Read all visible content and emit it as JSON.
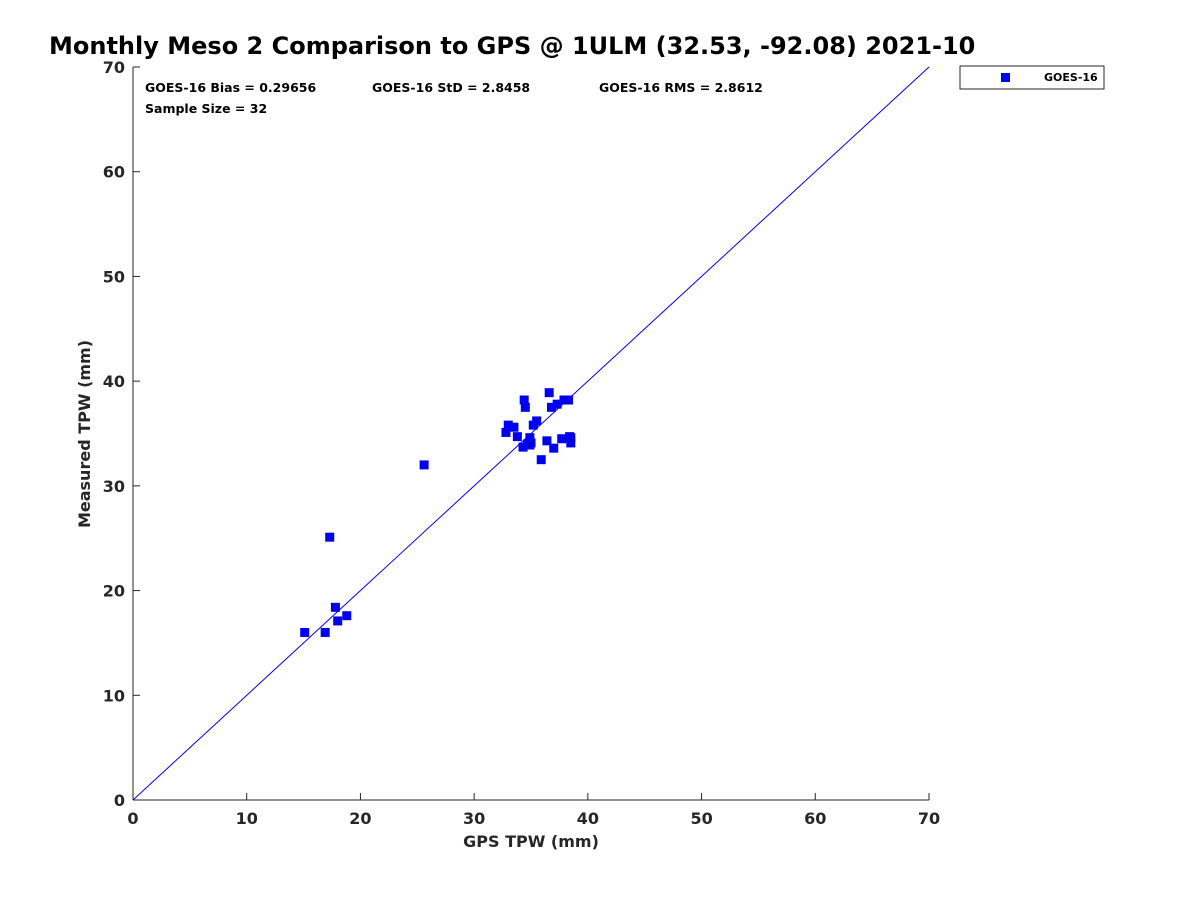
{
  "chart_data": {
    "type": "scatter",
    "title": "Monthly Meso 2 Comparison to GPS @ 1ULM (32.53, -92.08) 2021-10",
    "xlabel": "GPS TPW (mm)",
    "ylabel": "Measured TPW (mm)",
    "xlim": [
      0,
      70
    ],
    "ylim": [
      0,
      70
    ],
    "xticks": [
      "0",
      "10",
      "20",
      "30",
      "40",
      "50",
      "60",
      "70"
    ],
    "yticks": [
      "0",
      "10",
      "20",
      "30",
      "40",
      "50",
      "60",
      "70"
    ],
    "grid": false,
    "legend_position": "top-right-outside",
    "reference_line": {
      "name": "1:1 line",
      "x": [
        0,
        70
      ],
      "y": [
        0,
        70
      ],
      "color": "#0000ff"
    },
    "stats": {
      "bias": "GOES-16 Bias = 0.29656",
      "std": "GOES-16 StD = 2.8458",
      "rms": "GOES-16 RMS = 2.8612",
      "sample_size": "Sample Size = 32"
    },
    "series": [
      {
        "name": "GOES-16",
        "color": "#0000ee",
        "marker": "square",
        "x": [
          15.1,
          16.9,
          18.0,
          17.8,
          18.8,
          17.3,
          25.6,
          32.8,
          33.0,
          33.5,
          33.8,
          34.3,
          34.4,
          34.5,
          34.9,
          34.9,
          35.2,
          35.5,
          35.9,
          36.4,
          36.6,
          36.8,
          37.0,
          37.3,
          37.7,
          37.9,
          38.3,
          38.4,
          38.5,
          38.5,
          34.7,
          35.0
        ],
        "y": [
          16.0,
          16.0,
          17.1,
          18.4,
          17.6,
          25.1,
          32.0,
          35.1,
          35.8,
          35.6,
          34.7,
          33.7,
          38.2,
          37.5,
          33.9,
          34.6,
          35.8,
          36.2,
          32.5,
          34.3,
          38.9,
          37.5,
          33.6,
          37.8,
          34.5,
          38.2,
          38.2,
          34.7,
          34.1,
          34.6,
          34.0,
          34.1
        ]
      }
    ]
  }
}
